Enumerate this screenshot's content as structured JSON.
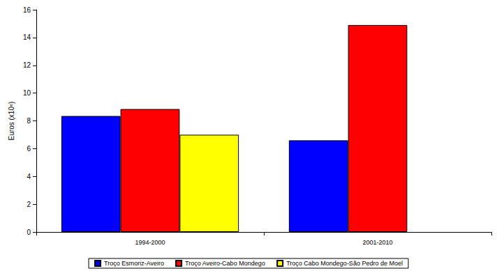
{
  "chart_data": {
    "type": "bar",
    "y_label": "Euros (x10⁶)",
    "categories": [
      "1994-2000",
      "2001-2010"
    ],
    "series": [
      {
        "name": "Troço Esmoriz-Aveiro",
        "color": "#0000ff",
        "values": [
          8.35,
          6.6
        ]
      },
      {
        "name": "Troço Aveiro-Cabo Mondego",
        "color": "#ff0000",
        "values": [
          8.85,
          14.9
        ]
      },
      {
        "name": "Troço Cabo Mondego-São Pedro de Moel",
        "color": "#ffff00",
        "values": [
          7.0,
          null
        ]
      }
    ],
    "ylim": [
      0,
      16
    ],
    "yticks": [
      0,
      2,
      4,
      6,
      8,
      10,
      12,
      14,
      16
    ],
    "grid": false,
    "legend": "bottom"
  }
}
